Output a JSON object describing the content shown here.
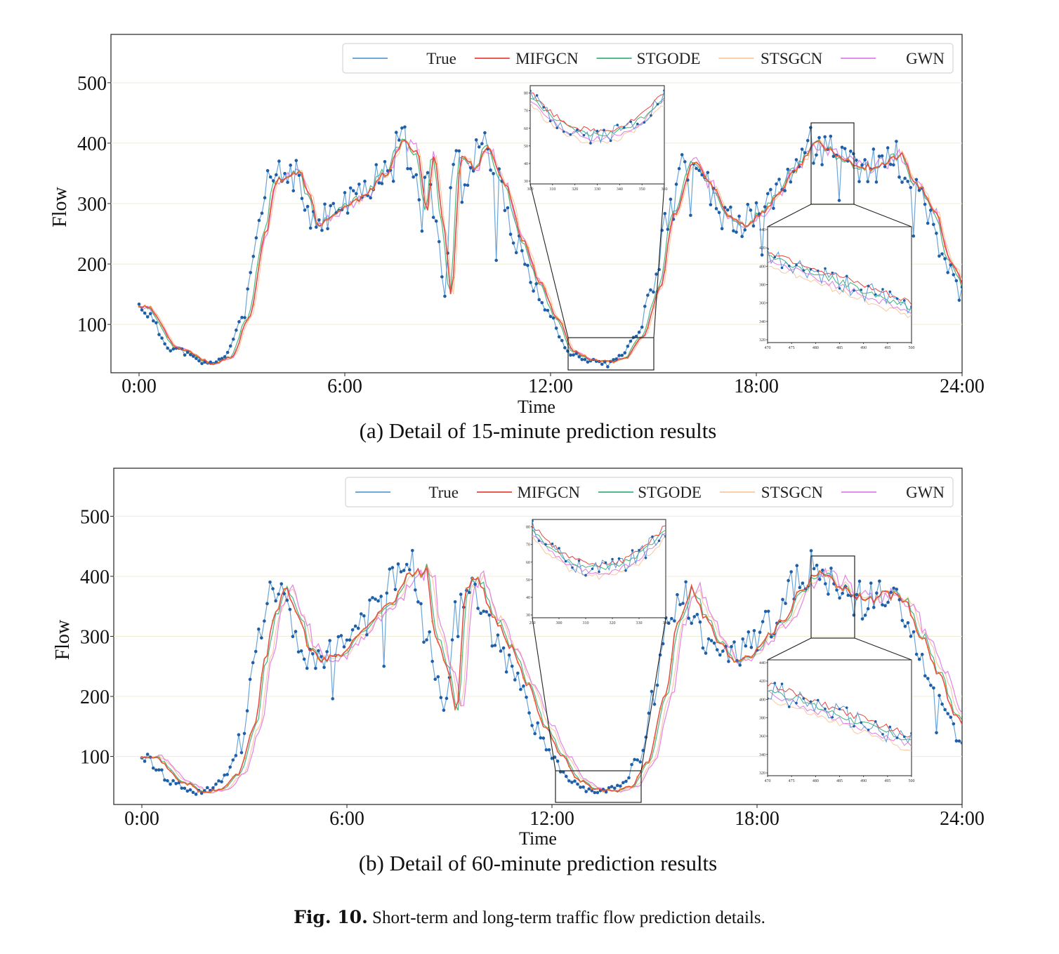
{
  "figure_caption": {
    "label": "Fig. 10.",
    "text": "Short-term and long-term traffic flow prediction details."
  },
  "colors": {
    "True": "#5b9bd5",
    "MIFGCN": "#e8433a",
    "STGODE": "#3cb37a",
    "STSGCN": "#f8c79f",
    "GWN": "#e27be6",
    "markers": "#1f5fa8",
    "grid": "#f1ecd6"
  },
  "chart_data": [
    {
      "type": "line",
      "subtitle": "(a)  Detail of 15-minute prediction results",
      "xlabel": "Time",
      "ylabel": "Flow",
      "x_ticks": [
        "0:00",
        "6:00",
        "12:00",
        "18:00",
        "24:00"
      ],
      "y_ticks": [
        100,
        200,
        300,
        400,
        500
      ],
      "xlim_hours": [
        0,
        24
      ],
      "ylim": [
        20,
        580
      ],
      "grid": "horizontal",
      "legend": {
        "placement": "top-right",
        "entries": [
          "True",
          "MIFGCN",
          "STGODE",
          "STSGCN",
          "GWN"
        ]
      },
      "true_key_points": [
        [
          0,
          130
        ],
        [
          1,
          60
        ],
        [
          2,
          35
        ],
        [
          2.5,
          45
        ],
        [
          3,
          110
        ],
        [
          3.5,
          250
        ],
        [
          3.8,
          340
        ],
        [
          4.5,
          350
        ],
        [
          4.8,
          310
        ],
        [
          5,
          265
        ],
        [
          5.5,
          280
        ],
        [
          6,
          300
        ],
        [
          6.5,
          320
        ],
        [
          7,
          350
        ],
        [
          7.5,
          400
        ],
        [
          7.9,
          390
        ],
        [
          8.2,
          290
        ],
        [
          8.4,
          380
        ],
        [
          8.7,
          260
        ],
        [
          8.9,
          150
        ],
        [
          9.2,
          380
        ],
        [
          9.6,
          360
        ],
        [
          10,
          390
        ],
        [
          10.5,
          330
        ],
        [
          11,
          240
        ],
        [
          11.5,
          170
        ],
        [
          12,
          110
        ],
        [
          12.5,
          55
        ],
        [
          13,
          42
        ],
        [
          13.5,
          38
        ],
        [
          14,
          45
        ],
        [
          14.5,
          80
        ],
        [
          15,
          160
        ],
        [
          15.4,
          280
        ],
        [
          16,
          370
        ],
        [
          16.5,
          330
        ],
        [
          17,
          280
        ],
        [
          17.5,
          265
        ],
        [
          18,
          285
        ],
        [
          18.5,
          320
        ],
        [
          19,
          360
        ],
        [
          19.5,
          400
        ],
        [
          20,
          385
        ],
        [
          20.5,
          370
        ],
        [
          21,
          360
        ],
        [
          21.5,
          365
        ],
        [
          22,
          380
        ],
        [
          22.5,
          330
        ],
        [
          23,
          290
        ],
        [
          23.5,
          200
        ],
        [
          24,
          150
        ]
      ],
      "series_offsets": {
        "MIFGCN": {
          "lag_hours": 0.2,
          "noise": 0.3
        },
        "STGODE": {
          "lag_hours": 0.15,
          "noise": 0.5
        },
        "STSGCN": {
          "lag_hours": 0.25,
          "noise": 0.4
        },
        "GWN": {
          "lag_hours": 0.2,
          "noise": 0.6
        }
      },
      "insets": [
        {
          "name": "inset-left",
          "x_ticks": [
            "300",
            "310",
            "320",
            "330",
            "340",
            "350",
            "360"
          ],
          "y_ticks": [
            "30",
            "40",
            "50",
            "60",
            "70",
            "80"
          ],
          "xlim": [
            300,
            360
          ],
          "ylim": [
            25,
            80
          ]
        },
        {
          "name": "inset-right",
          "x_ticks": [
            "470",
            "475",
            "480",
            "485",
            "490",
            "495",
            "500"
          ],
          "y_ticks": [
            "320",
            "340",
            "360",
            "380",
            "400",
            "420",
            "440"
          ],
          "xlim": [
            470,
            500
          ],
          "ylim": [
            310,
            445
          ]
        }
      ]
    },
    {
      "type": "line",
      "subtitle": "(b)  Detail of 60-minute prediction results",
      "xlabel": "Time",
      "ylabel": "Flow",
      "x_ticks": [
        "0:00",
        "6:00",
        "12:00",
        "18:00",
        "24:00"
      ],
      "y_ticks": [
        100,
        200,
        300,
        400,
        500
      ],
      "xlim_hours": [
        0,
        24
      ],
      "ylim": [
        20,
        580
      ],
      "grid": "horizontal",
      "legend": {
        "placement": "top-right",
        "entries": [
          "True",
          "MIFGCN",
          "STGODE",
          "STSGCN",
          "GWN"
        ]
      },
      "true_key_points": [
        [
          0,
          100
        ],
        [
          1,
          55
        ],
        [
          1.5,
          40
        ],
        [
          2,
          45
        ],
        [
          2.5,
          70
        ],
        [
          3,
          150
        ],
        [
          3.3,
          260
        ],
        [
          3.6,
          340
        ],
        [
          3.9,
          380
        ],
        [
          4.3,
          330
        ],
        [
          4.6,
          280
        ],
        [
          5,
          260
        ],
        [
          5.5,
          270
        ],
        [
          6,
          300
        ],
        [
          6.5,
          330
        ],
        [
          7,
          360
        ],
        [
          7.5,
          400
        ],
        [
          8,
          410
        ],
        [
          8.3,
          300
        ],
        [
          8.6,
          250
        ],
        [
          8.9,
          180
        ],
        [
          9.2,
          380
        ],
        [
          9.5,
          400
        ],
        [
          10,
          330
        ],
        [
          10.5,
          280
        ],
        [
          11,
          220
        ],
        [
          11.5,
          150
        ],
        [
          12,
          100
        ],
        [
          12.5,
          60
        ],
        [
          13,
          45
        ],
        [
          13.5,
          42
        ],
        [
          14,
          50
        ],
        [
          14.5,
          90
        ],
        [
          15,
          200
        ],
        [
          15.4,
          330
        ],
        [
          15.8,
          380
        ],
        [
          16.2,
          330
        ],
        [
          16.6,
          290
        ],
        [
          17,
          260
        ],
        [
          17.5,
          270
        ],
        [
          18,
          300
        ],
        [
          18.5,
          330
        ],
        [
          19,
          380
        ],
        [
          19.5,
          410
        ],
        [
          20,
          390
        ],
        [
          20.5,
          370
        ],
        [
          21,
          360
        ],
        [
          21.5,
          370
        ],
        [
          22,
          360
        ],
        [
          22.5,
          300
        ],
        [
          23,
          240
        ],
        [
          23.5,
          170
        ],
        [
          24,
          120
        ]
      ],
      "series_offsets": {
        "MIFGCN": {
          "lag_hours": 0.3,
          "noise": 0.4
        },
        "STGODE": {
          "lag_hours": 0.35,
          "noise": 0.5
        },
        "STSGCN": {
          "lag_hours": 0.45,
          "noise": 0.4
        },
        "GWN": {
          "lag_hours": 0.5,
          "noise": 0.7
        }
      },
      "insets": [
        {
          "name": "inset-left",
          "x_ticks": [
            "290",
            "300",
            "310",
            "320",
            "330",
            "340"
          ],
          "y_ticks": [
            "30",
            "40",
            "50",
            "60",
            "70",
            "80"
          ],
          "xlim": [
            290,
            345
          ],
          "ylim": [
            25,
            80
          ]
        },
        {
          "name": "inset-right",
          "x_ticks": [
            "470",
            "475",
            "480",
            "485",
            "490",
            "495",
            "500"
          ],
          "y_ticks": [
            "320",
            "340",
            "360",
            "380",
            "400",
            "420",
            "440"
          ],
          "xlim": [
            470,
            500
          ],
          "ylim": [
            310,
            445
          ]
        }
      ]
    }
  ]
}
